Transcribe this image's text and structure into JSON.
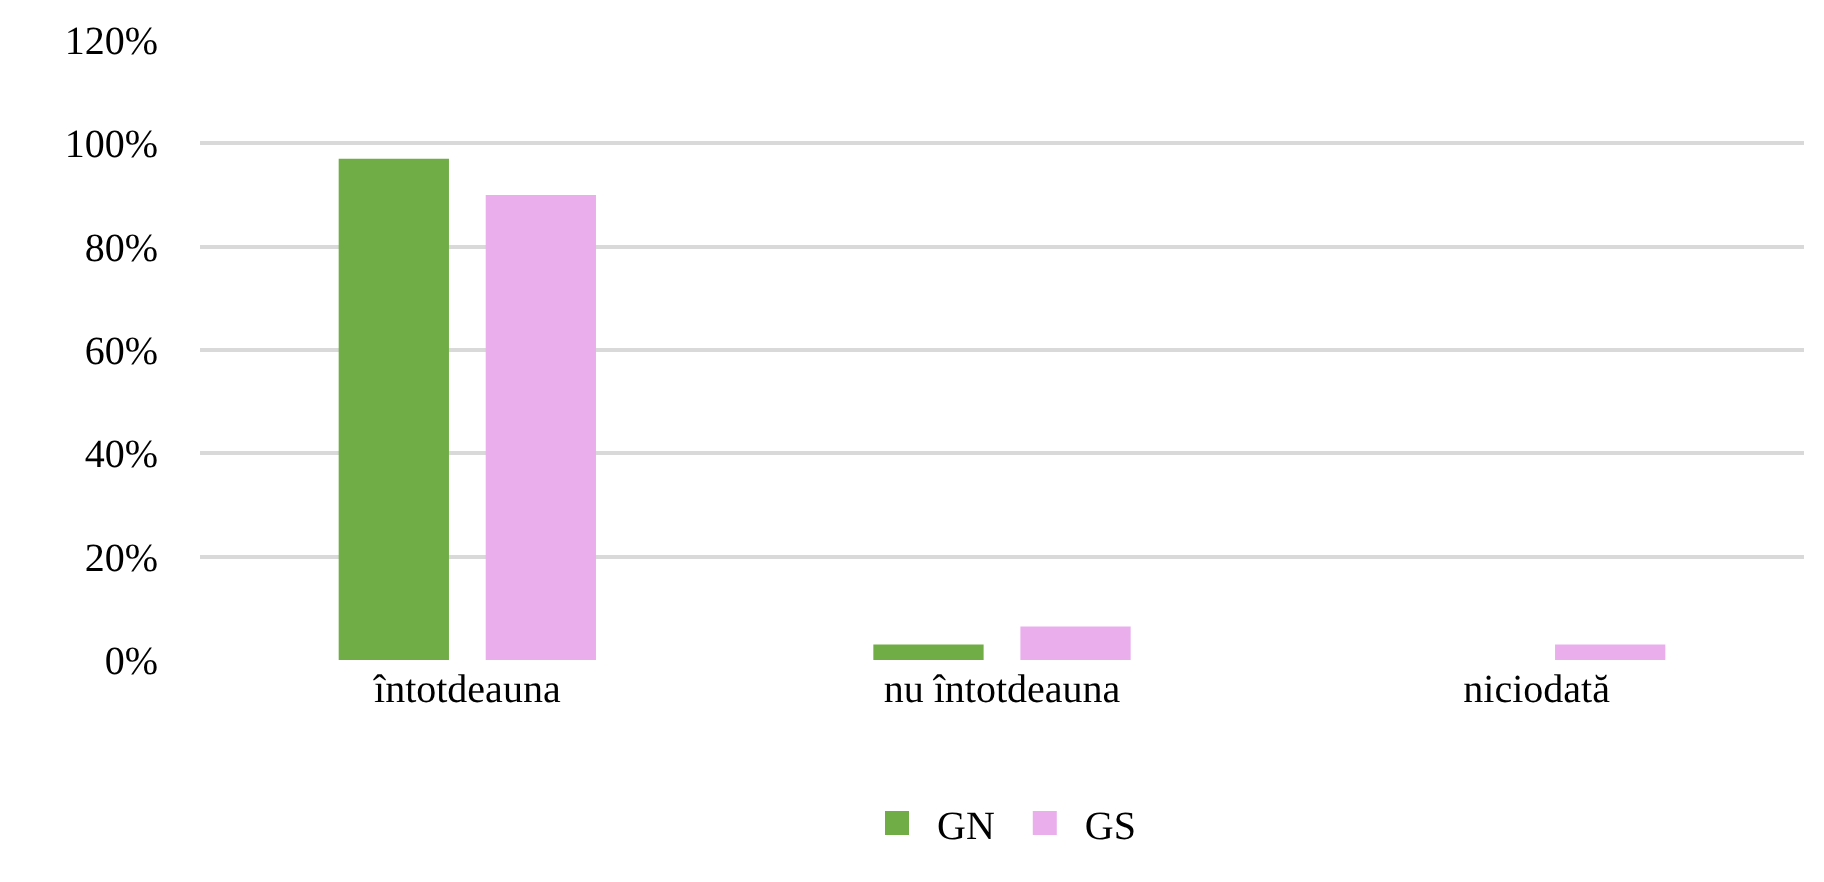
{
  "chart_data": {
    "type": "bar",
    "categories": [
      "întotdeauna",
      "nu întotdeauna",
      "niciodată"
    ],
    "series": [
      {
        "name": "GN",
        "color": "#70ad47",
        "values": [
          97,
          3,
          0
        ]
      },
      {
        "name": "GS",
        "color": "#eaaeed",
        "values": [
          90,
          6.5,
          3
        ]
      }
    ],
    "ylim": [
      0,
      120
    ],
    "yticks": [
      {
        "value": 0,
        "label": "0%"
      },
      {
        "value": 20,
        "label": "20%"
      },
      {
        "value": 40,
        "label": "40%"
      },
      {
        "value": 60,
        "label": "60%"
      },
      {
        "value": 80,
        "label": "80%"
      },
      {
        "value": 100,
        "label": "100%"
      },
      {
        "value": 120,
        "label": "120%"
      }
    ],
    "grid": "y",
    "legend": "bottom"
  }
}
